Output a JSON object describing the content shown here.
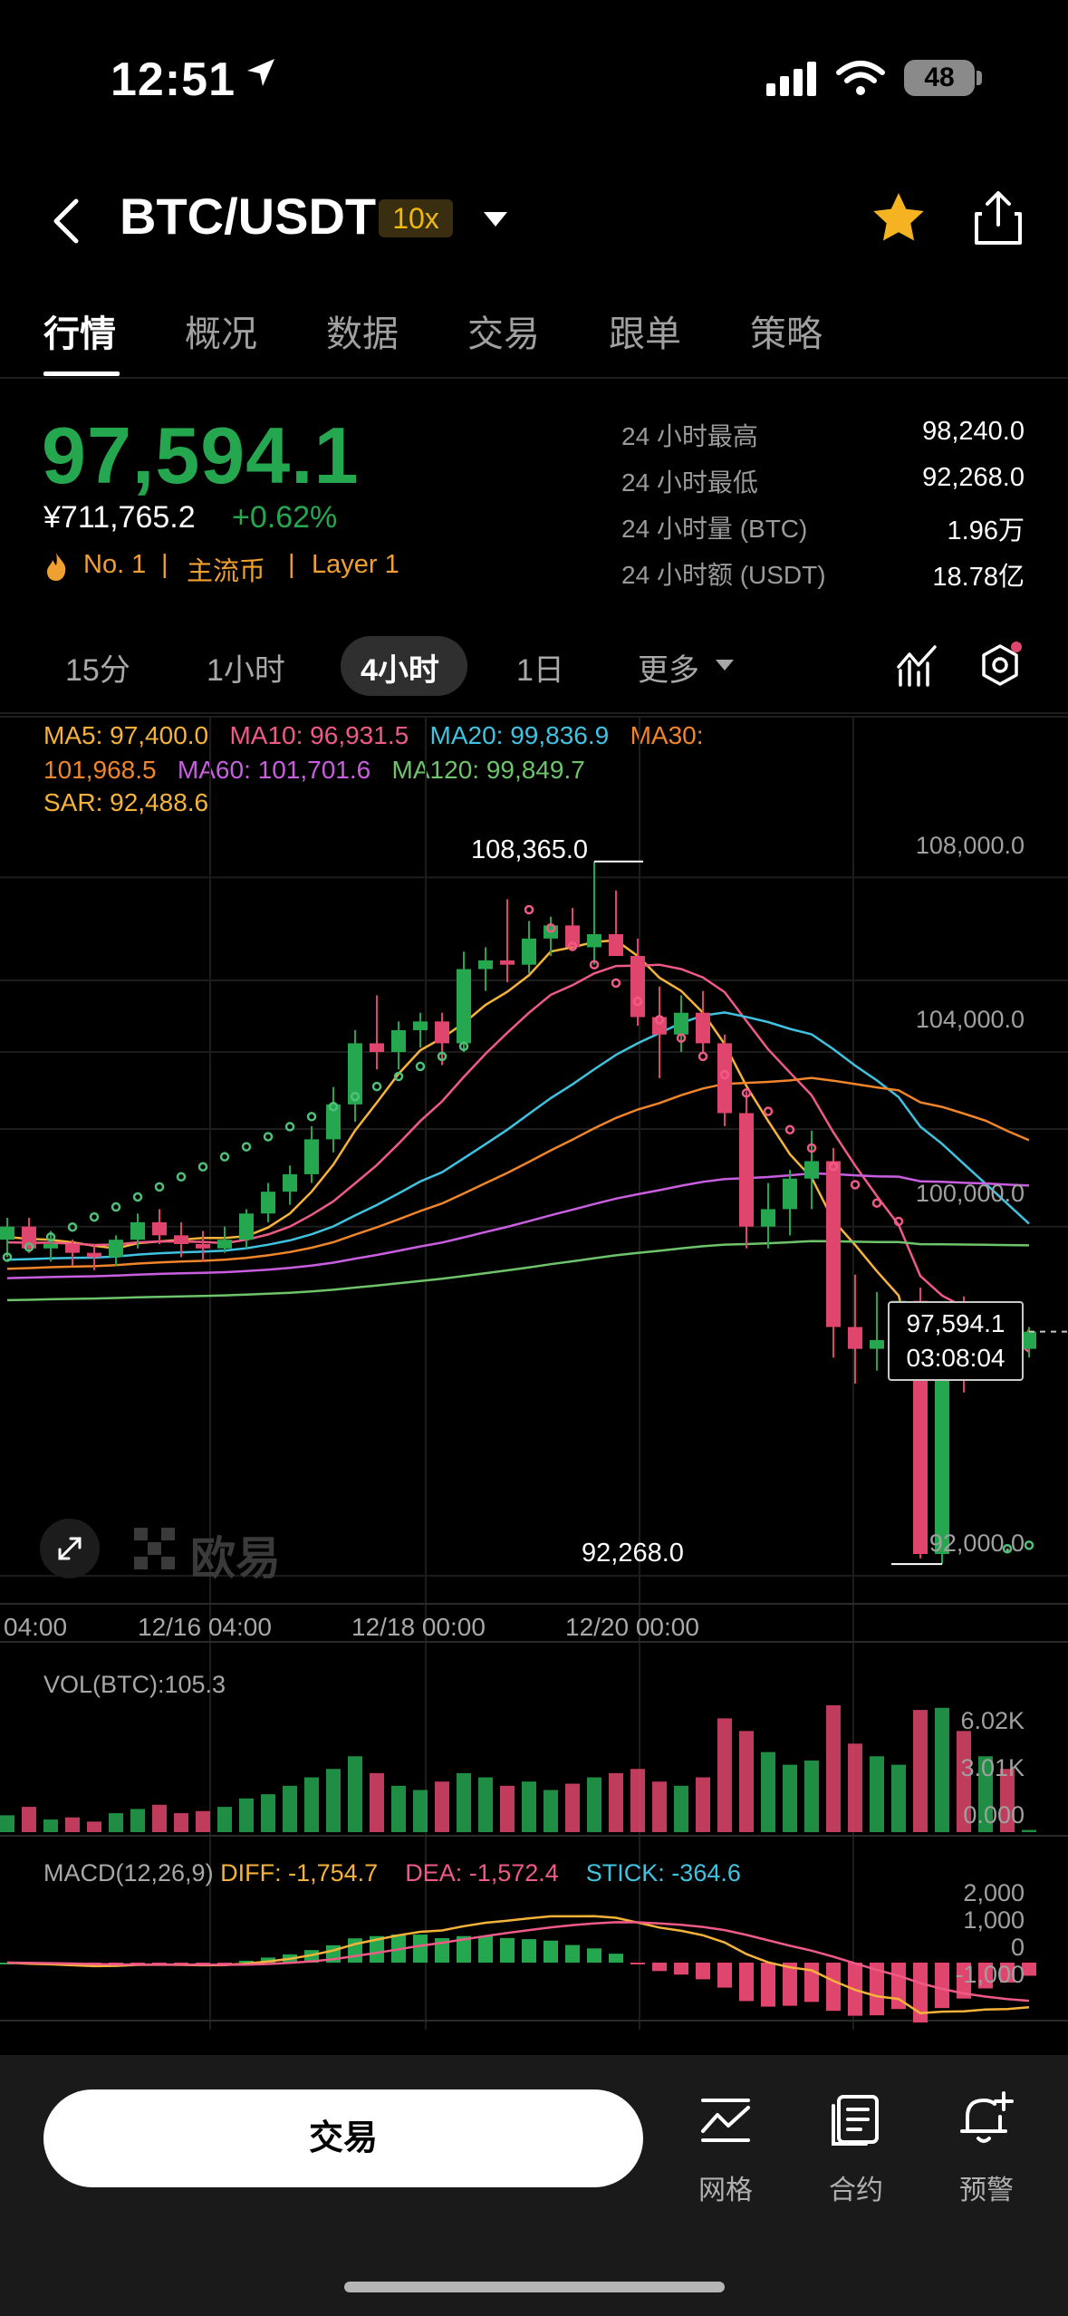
{
  "status_bar": {
    "time": "12:51",
    "battery": "48"
  },
  "header": {
    "pair": "BTC/USDT",
    "leverage": "10x"
  },
  "tabs": [
    "行情",
    "概况",
    "数据",
    "交易",
    "跟单",
    "策略"
  ],
  "ticker": {
    "price": "97,594.1",
    "cny_price": "¥711,765.2",
    "change": "+0.62%",
    "rank_tag": "No. 1",
    "tag_mainstream": "主流币",
    "tag_layer": "Layer 1",
    "stats": [
      {
        "label": "24 小时最高",
        "value": "98,240.0"
      },
      {
        "label": "24 小时最低",
        "value": "92,268.0"
      },
      {
        "label": "24 小时量 (BTC)",
        "value": "1.96万"
      },
      {
        "label": "24 小时额 (USDT)",
        "value": "18.78亿"
      }
    ]
  },
  "intervals": {
    "i15m": "15分",
    "i1h": "1小时",
    "i4h": "4小时",
    "i1d": "1日",
    "more": "更多"
  },
  "indicators": {
    "ma5": "MA5: 97,400.0",
    "ma10": "MA10: 96,931.5",
    "ma20": "MA20: 99,836.9",
    "ma30": "MA30:",
    "ma30_value": "101,968.5",
    "ma60": "MA60: 101,701.6",
    "ma120": "MA120: 99,849.7",
    "sar": "SAR: 92,488.6"
  },
  "colors": {
    "up": "#25a750",
    "down": "#e0466d",
    "ma5": "#f5b33a",
    "ma10": "#ef5a86",
    "ma20": "#3fc3e0",
    "ma30": "#f0852a",
    "ma60": "#c95ee0",
    "ma120": "#6ec46a",
    "sar_up": "#4ec07a",
    "sar_down": "#ef5a86",
    "accent": "#f0b90b"
  },
  "chart": {
    "high_marker": "108,365.0",
    "low_marker": "92,268.0",
    "y_ticks": [
      "108,000.0",
      "104,000.0",
      "100,000.0",
      "92,000.0"
    ],
    "x_ticks": [
      "04:00",
      "12/16 04:00",
      "12/18 00:00",
      "12/20 00:00"
    ],
    "current_price": "97,594.1",
    "countdown": "03:08:04",
    "watermark": "欧易"
  },
  "volume": {
    "label": "VOL(BTC):105.3",
    "ticks": [
      "6.02K",
      "3.01K",
      "0.000"
    ]
  },
  "macd": {
    "label": "MACD(12,26,9)",
    "diff": "DIFF: -1,754.7",
    "dea": "DEA: -1,572.4",
    "stick": "STICK: -364.6",
    "ticks": [
      "2,000",
      "1,000",
      "0",
      "-1,000"
    ]
  },
  "bottom": {
    "trade": "交易",
    "grid": "网格",
    "contract": "合约",
    "alert": "预警"
  },
  "chart_data": [
    {
      "type": "candlestick",
      "title": "BTC/USDT 4小时",
      "x_ticks": [
        "04:00",
        "12/16 04:00",
        "12/18 00:00",
        "12/20 00:00"
      ],
      "y_ticks": [
        108000,
        104000,
        100000,
        92000
      ],
      "ylim": [
        91400,
        108900
      ],
      "ohlc": [
        [
          99700,
          100200,
          99300,
          100000
        ],
        [
          100000,
          100200,
          99400,
          99500
        ],
        [
          99500,
          99900,
          99200,
          99600
        ],
        [
          99600,
          99700,
          99100,
          99400
        ],
        [
          99400,
          99600,
          99000,
          99300
        ],
        [
          99300,
          99800,
          99100,
          99700
        ],
        [
          99700,
          100300,
          99500,
          100100
        ],
        [
          100100,
          100400,
          99600,
          99800
        ],
        [
          99800,
          100100,
          99300,
          99600
        ],
        [
          99600,
          99900,
          99200,
          99500
        ],
        [
          99500,
          100000,
          99400,
          99700
        ],
        [
          99700,
          100400,
          99500,
          100300
        ],
        [
          100300,
          101000,
          100100,
          100800
        ],
        [
          100800,
          101400,
          100500,
          101200
        ],
        [
          101200,
          102300,
          101000,
          102000
        ],
        [
          102000,
          103200,
          101700,
          102800
        ],
        [
          102800,
          104500,
          102400,
          104200
        ],
        [
          104200,
          105300,
          103600,
          104000
        ],
        [
          104000,
          104700,
          103600,
          104500
        ],
        [
          104500,
          104900,
          104100,
          104700
        ],
        [
          104700,
          104900,
          103700,
          104200
        ],
        [
          104200,
          106300,
          104000,
          105900
        ],
        [
          105900,
          106400,
          105400,
          106100
        ],
        [
          106100,
          107500,
          105600,
          106000
        ],
        [
          106000,
          107000,
          105800,
          106600
        ],
        [
          106600,
          107100,
          106200,
          106900
        ],
        [
          106900,
          107300,
          106500,
          106400
        ],
        [
          106400,
          108365,
          106000,
          106700
        ],
        [
          106700,
          107700,
          106300,
          106200
        ],
        [
          106200,
          106600,
          104600,
          104800
        ],
        [
          104800,
          105500,
          103400,
          104400
        ],
        [
          104400,
          105300,
          104000,
          104900
        ],
        [
          104900,
          105400,
          104000,
          104200
        ],
        [
          104200,
          104400,
          102300,
          102600
        ],
        [
          102600,
          103100,
          99500,
          100000
        ],
        [
          100000,
          101000,
          99500,
          100400
        ],
        [
          100400,
          101300,
          99800,
          101100
        ],
        [
          101100,
          102200,
          100400,
          101500
        ],
        [
          101500,
          101800,
          97000,
          97700
        ],
        [
          97700,
          98900,
          96400,
          97200
        ],
        [
          97200,
          98500,
          96700,
          97400
        ],
        [
          97400,
          98300,
          96600,
          98300
        ],
        [
          98300,
          98600,
          92400,
          92500
        ],
        [
          92500,
          98200,
          92268,
          98100
        ],
        [
          98100,
          98400,
          96200,
          97400
        ],
        [
          97400,
          98240,
          96900,
          97900
        ],
        [
          97900,
          98200,
          97000,
          97200
        ],
        [
          97200,
          97700,
          97000,
          97594.1
        ]
      ],
      "volume": [
        800,
        1200,
        600,
        700,
        500,
        900,
        1100,
        1300,
        900,
        1000,
        1200,
        1600,
        1800,
        2200,
        2600,
        3000,
        3600,
        2800,
        2200,
        2000,
        2400,
        2800,
        2600,
        2200,
        2400,
        2000,
        2300,
        2600,
        2800,
        3000,
        2400,
        2200,
        2600,
        5400,
        4800,
        3800,
        3200,
        3400,
        6020,
        4200,
        3600,
        3200,
        5800,
        5900,
        4800,
        3600,
        3000,
        105.3
      ],
      "macd": {
        "diff": -1754.7,
        "dea": -1572.4,
        "stick": -364.6
      }
    }
  ]
}
